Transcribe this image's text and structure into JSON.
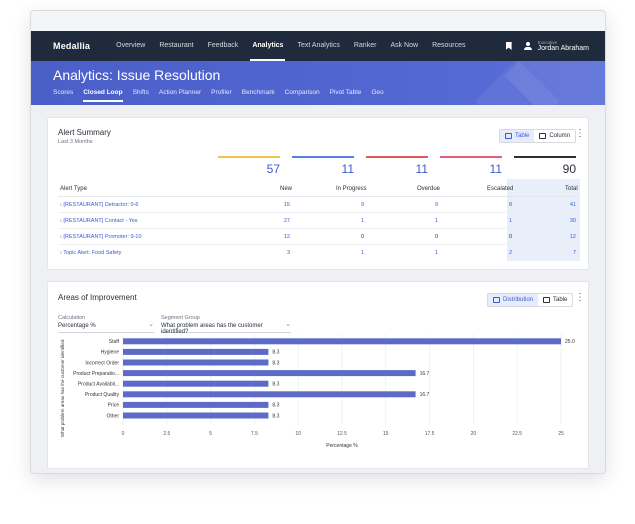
{
  "nav": {
    "brand": "Medallia",
    "items": [
      "Overview",
      "Restaurant",
      "Feedback",
      "Analytics",
      "Text Analytics",
      "Ranker",
      "Ask Now",
      "Resources"
    ],
    "user_role": "Executive",
    "user_name": "Jordan Abraham"
  },
  "page": {
    "title": "Analytics: Issue Resolution",
    "tabs": [
      "Scores",
      "Closed Loop",
      "Shifts",
      "Action Planner",
      "Profiler",
      "Benchmark",
      "Comparison",
      "Pivot Table",
      "Geo"
    ]
  },
  "alert_summary": {
    "title": "Alert Summary",
    "subtitle": "Last 3 Months",
    "toggle": [
      "Table",
      "Column"
    ],
    "totals": [
      {
        "value": "57",
        "color": "#f2c14e"
      },
      {
        "value": "11",
        "color": "#5b7fe0"
      },
      {
        "value": "11",
        "color": "#e05a5a"
      },
      {
        "value": "11",
        "color": "#e0607a"
      },
      {
        "value": "90",
        "color": "#2a2f38"
      }
    ],
    "headers": [
      "Alert Type",
      "New",
      "In Progress",
      "Overdue",
      "Escalated",
      "Total"
    ],
    "rows": [
      [
        "[RESTAURANT] Detractor: 0-6",
        "15",
        "9",
        "9",
        "8",
        "41"
      ],
      [
        "[RESTAURANT] Contact - Yes",
        "27",
        "1",
        "1",
        "1",
        "30"
      ],
      [
        "[RESTAURANT] Promoter: 9-10",
        "12",
        "0",
        "0",
        "0",
        "12"
      ],
      [
        "Topic Alert: Food Safety",
        "3",
        "1",
        "1",
        "2",
        "7"
      ]
    ]
  },
  "areas": {
    "title": "Areas of Improvement",
    "toggle": [
      "Distribution",
      "Table"
    ],
    "calc_label": "Calculation",
    "calc_value": "Percentage %",
    "segment_label": "Segment Group",
    "segment_value": "What problem areas has the customer identified?"
  },
  "chart_data": {
    "type": "bar",
    "orientation": "horizontal",
    "categories": [
      "Staff",
      "Hygiene",
      "Incorrect Order",
      "Product Preparatio...",
      "Product Availabil...",
      "Product Quality",
      "Price",
      "Other"
    ],
    "values": [
      25.0,
      8.3,
      8.3,
      16.7,
      8.3,
      16.7,
      8.3,
      8.3
    ],
    "value_labels": [
      "25.0",
      "8.3",
      "8.3",
      "16.7",
      "8.3",
      "16.7",
      "8.3",
      "8.3"
    ],
    "xlabel": "Percentage %",
    "ylabel": "What problem areas has the customer identified",
    "xticks": [
      "0",
      "2.5",
      "5",
      "7.5",
      "10",
      "12.5",
      "15",
      "17.5",
      "20",
      "22.5",
      "25"
    ],
    "xlim": [
      0,
      25
    ],
    "color": "#5c6bc8",
    "grid": true
  }
}
